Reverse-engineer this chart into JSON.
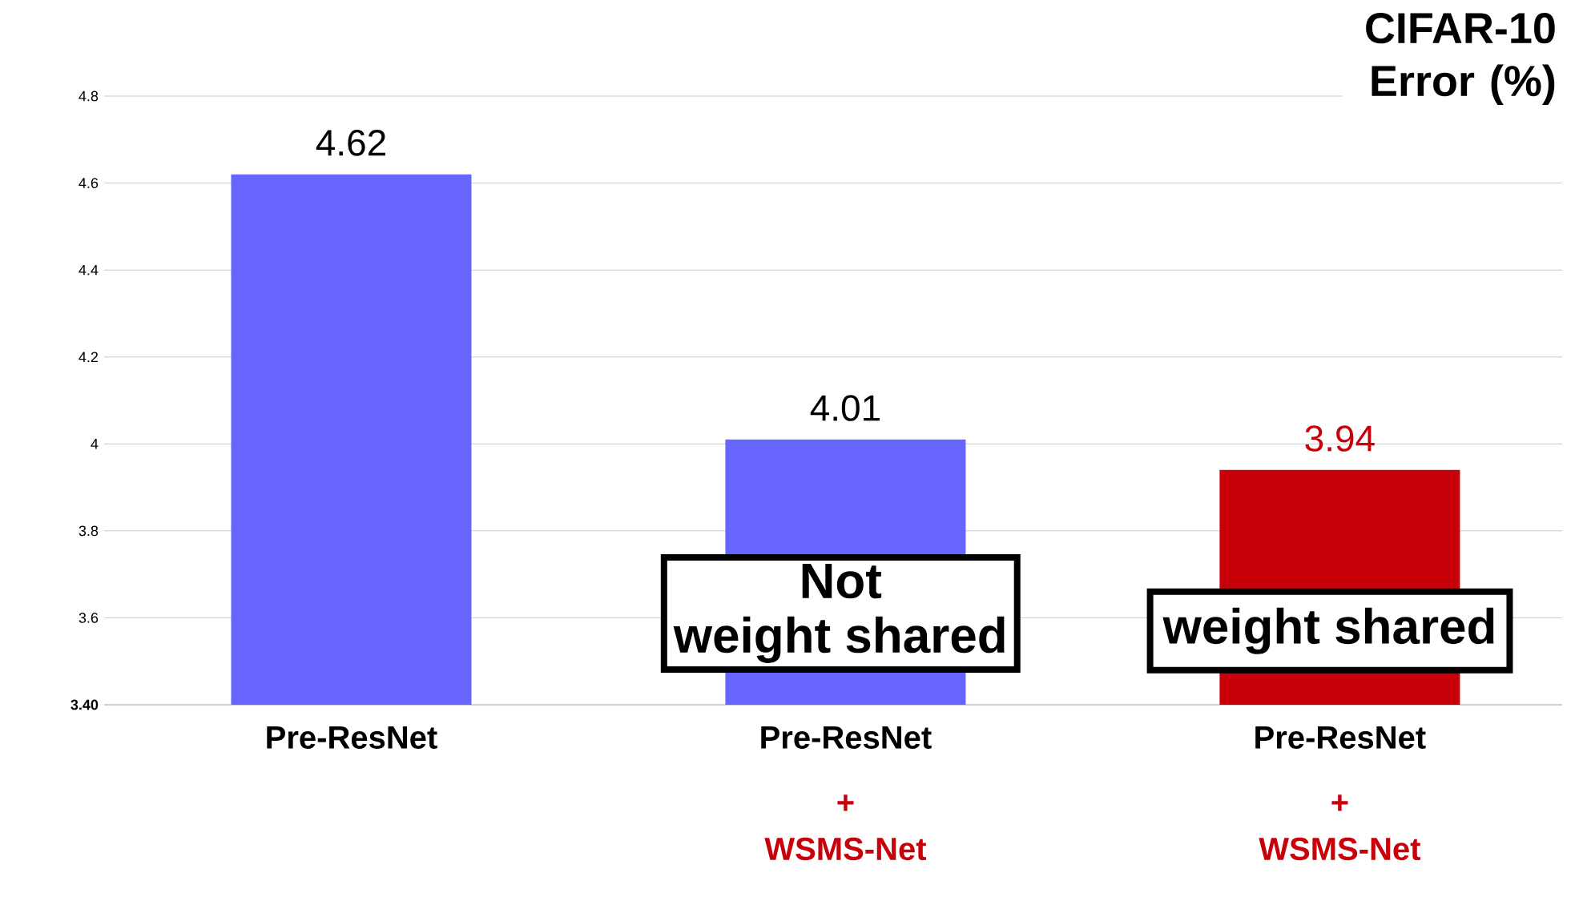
{
  "chart_data": {
    "type": "bar",
    "title": "CIFAR-10 Error (%)",
    "categories": [
      "Pre-ResNet",
      "Pre-ResNet",
      "Pre-ResNet"
    ],
    "values": [
      4.62,
      4.01,
      3.94
    ],
    "colors": [
      "#6666ff",
      "#6666ff",
      "#c8000a"
    ],
    "data_labels": true,
    "ylim": [
      3.4,
      4.8
    ],
    "yticks": [
      {
        "value": 3.4,
        "label": "3.40"
      },
      3.6,
      3.8,
      4,
      4.2,
      4.4,
      4.6,
      4.8
    ],
    "grid": "y",
    "annotations": [
      "+",
      "WSMS-Net",
      "+",
      "WSMS-Net",
      "Not",
      "weight shared",
      "weight shared"
    ]
  }
}
